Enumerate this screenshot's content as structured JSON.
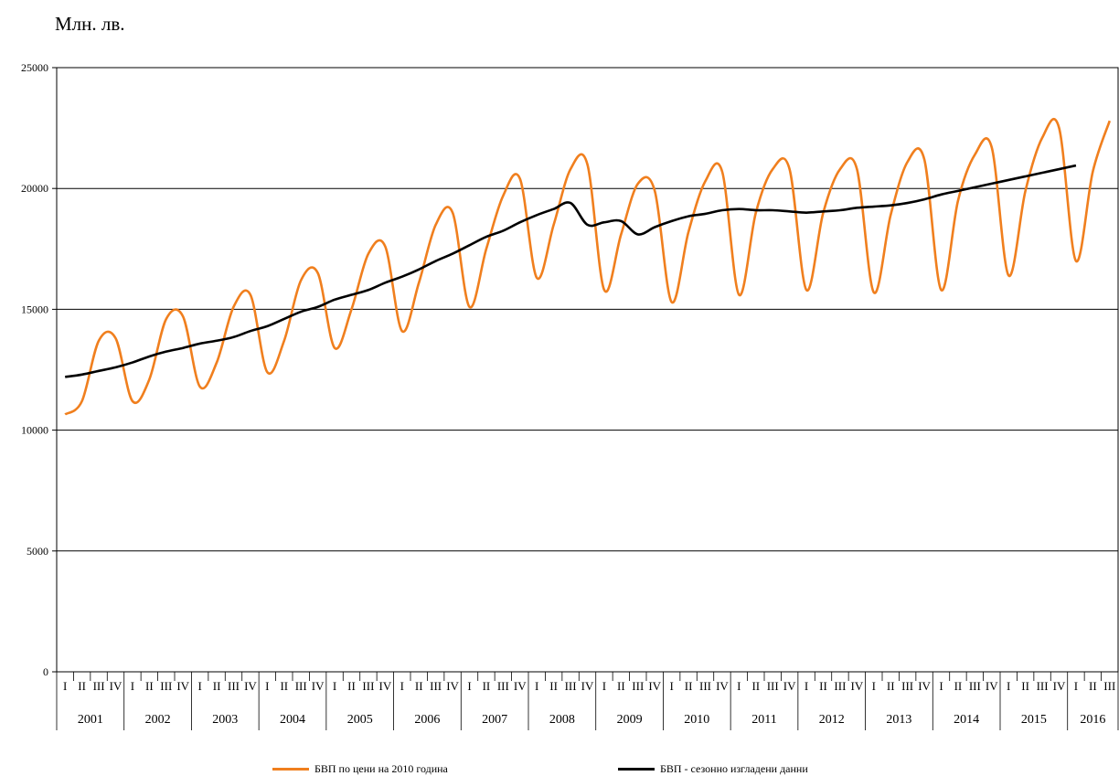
{
  "unit_label": "Млн. лв.",
  "chart_data": {
    "type": "line",
    "ylim": [
      0,
      25000
    ],
    "yticks": [
      0,
      5000,
      10000,
      15000,
      20000,
      25000
    ],
    "grid": true,
    "legend_position": "bottom",
    "quarter_labels": [
      "I",
      "II",
      "III",
      "IV"
    ],
    "years": [
      "2001",
      "2002",
      "2003",
      "2004",
      "2005",
      "2006",
      "2007",
      "2008",
      "2009",
      "2010",
      "2011",
      "2012",
      "2013",
      "2014",
      "2015",
      "2016"
    ],
    "series": [
      {
        "name": "БВП по цени на 2010 година",
        "color": "#f07f1e",
        "values": [
          10650,
          11200,
          13700,
          13800,
          11200,
          12100,
          14600,
          14700,
          11800,
          12800,
          15100,
          15600,
          12400,
          13700,
          16200,
          16500,
          13400,
          15000,
          17300,
          17600,
          14100,
          16100,
          18500,
          19000,
          15100,
          17500,
          19700,
          20400,
          16300,
          18500,
          20800,
          21000,
          15800,
          18100,
          20200,
          19900,
          15300,
          18200,
          20300,
          20700,
          15600,
          19000,
          20800,
          20800,
          15800,
          19000,
          20800,
          20800,
          15700,
          18900,
          21100,
          21200,
          15800,
          19500,
          21400,
          21700,
          16400,
          19900,
          22100,
          22500,
          17000,
          20700,
          22800
        ]
      },
      {
        "name": "БВП - сезонно изгладени данни",
        "color": "#000000",
        "values": [
          12200,
          12300,
          12450,
          12600,
          12800,
          13050,
          13250,
          13400,
          13580,
          13700,
          13850,
          14100,
          14300,
          14600,
          14900,
          15100,
          15400,
          15600,
          15800,
          16100,
          16350,
          16650,
          17000,
          17300,
          17650,
          18000,
          18250,
          18600,
          18900,
          19150,
          19400,
          18500,
          18600,
          18650,
          18100,
          18400,
          18650,
          18850,
          18950,
          19100,
          19150,
          19100,
          19100,
          19050,
          19000,
          19050,
          19100,
          19200,
          19250,
          19300,
          19400,
          19550,
          19750,
          19900,
          20050,
          20200,
          20350,
          20500,
          20650,
          20800,
          20950
        ]
      }
    ]
  }
}
